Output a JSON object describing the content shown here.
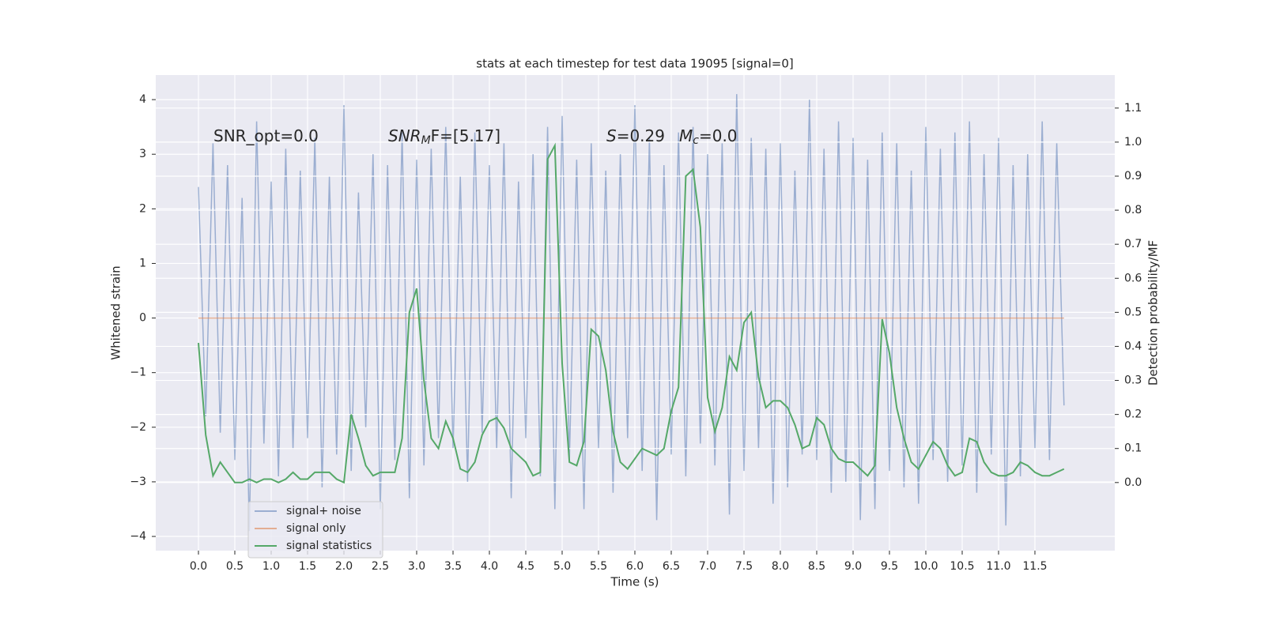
{
  "chart_data": {
    "type": "line",
    "title": "stats at each timestep for test data 19095 [signal=0]",
    "x_label": "Time (s)",
    "y_label": "Whitened strain",
    "y2_label": "Detection probability/MF",
    "annotations": [
      [
        {
          "text": "SNR_opt=0.0"
        }
      ],
      [
        {
          "text": "SNR",
          "style": "italic"
        },
        {
          "text": "M",
          "style": "sub"
        },
        {
          "text": "F=[5.17]"
        }
      ],
      [
        {
          "text": "S",
          "style": "italic"
        },
        {
          "text": "=0.29"
        }
      ],
      [
        {
          "text": "M",
          "style": "italic"
        },
        {
          "text": "c",
          "style": "sub"
        },
        {
          "text": "=0.0"
        }
      ]
    ],
    "grid": true,
    "legend": "lower left",
    "background": "#eaeaf2",
    "xlim": [
      -0.587,
      12.598
    ],
    "ylim": [
      -4.26,
      4.45
    ],
    "y2lim": [
      -0.2,
      1.197
    ],
    "xticks": [
      {
        "value": 0,
        "label": "0.0"
      },
      {
        "value": 0.5,
        "label": "0.5"
      },
      {
        "value": 1,
        "label": "1.0"
      },
      {
        "value": 1.5,
        "label": "1.5"
      },
      {
        "value": 2,
        "label": "2.0"
      },
      {
        "value": 2.5,
        "label": "2.5"
      },
      {
        "value": 3,
        "label": "3.0"
      },
      {
        "value": 3.5,
        "label": "3.5"
      },
      {
        "value": 4,
        "label": "4.0"
      },
      {
        "value": 4.5,
        "label": "4.5"
      },
      {
        "value": 5,
        "label": "5.0"
      },
      {
        "value": 5.5,
        "label": "5.5"
      },
      {
        "value": 6,
        "label": "6.0"
      },
      {
        "value": 6.5,
        "label": "6.5"
      },
      {
        "value": 7,
        "label": "7.0"
      },
      {
        "value": 7.5,
        "label": "7.5"
      },
      {
        "value": 8,
        "label": "8.0"
      },
      {
        "value": 8.5,
        "label": "8.5"
      },
      {
        "value": 9,
        "label": "9.0"
      },
      {
        "value": 9.5,
        "label": "9.5"
      },
      {
        "value": 10,
        "label": "10.0"
      },
      {
        "value": 10.5,
        "label": "10.5"
      },
      {
        "value": 11,
        "label": "11.0"
      },
      {
        "value": 11.5,
        "label": "11.5"
      }
    ],
    "yticks": [
      {
        "value": -4,
        "label": "−4"
      },
      {
        "value": -3,
        "label": "−3"
      },
      {
        "value": -2,
        "label": "−2"
      },
      {
        "value": -1,
        "label": "−1"
      },
      0,
      1,
      2,
      3,
      4
    ],
    "y2ticks": [
      {
        "value": 0,
        "label": "0.0"
      },
      0.1,
      0.2,
      0.3,
      0.4,
      0.5,
      0.6,
      0.7,
      0.8,
      0.9,
      {
        "value": 1,
        "label": "1.0"
      },
      1.1
    ],
    "x": [
      0,
      0.1,
      0.2,
      0.3,
      0.4,
      0.5,
      0.6,
      0.7,
      0.8,
      0.9,
      1,
      1.1,
      1.2,
      1.3,
      1.4,
      1.5,
      1.6,
      1.7,
      1.8,
      1.9,
      2,
      2.1,
      2.2,
      2.3,
      2.4,
      2.5,
      2.6,
      2.7,
      2.8,
      2.9,
      3,
      3.1,
      3.2,
      3.3,
      3.4,
      3.5,
      3.6,
      3.7,
      3.8,
      3.9,
      4,
      4.1,
      4.2,
      4.3,
      4.4,
      4.5,
      4.6,
      4.7,
      4.8,
      4.9,
      5,
      5.1,
      5.2,
      5.3,
      5.4,
      5.5,
      5.6,
      5.7,
      5.8,
      5.9,
      6,
      6.1,
      6.2,
      6.3,
      6.4,
      6.5,
      6.6,
      6.7,
      6.8,
      6.9,
      7,
      7.1,
      7.2,
      7.3,
      7.4,
      7.5,
      7.6,
      7.7,
      7.8,
      7.9,
      8,
      8.1,
      8.2,
      8.3,
      8.4,
      8.5,
      8.6,
      8.7,
      8.8,
      8.9,
      9,
      9.1,
      9.2,
      9.3,
      9.4,
      9.5,
      9.6,
      9.7,
      9.8,
      9.9,
      10,
      10.1,
      10.2,
      10.3,
      10.4,
      10.5,
      10.6,
      10.7,
      10.8,
      10.9,
      11,
      11.1,
      11.2,
      11.3,
      11.4,
      11.5,
      11.6,
      11.7,
      11.8,
      11.9
    ],
    "series": [
      {
        "name": "signal+ noise",
        "color": "#4c72b0",
        "opacity": 0.5,
        "values": [
          2.4,
          -1.8,
          3.2,
          -2.1,
          2.8,
          -2.6,
          2.2,
          -3.9,
          3.6,
          -2.3,
          2.5,
          -2.9,
          3.1,
          -2.4,
          2.7,
          -2.2,
          3.3,
          -3.1,
          2.6,
          -2.5,
          3.9,
          -2.8,
          2.3,
          -2.0,
          3.0,
          -3.5,
          2.8,
          -2.6,
          3.4,
          -3.3,
          2.9,
          -2.7,
          3.1,
          -2.2,
          3.5,
          -2.4,
          2.6,
          -3.0,
          3.4,
          -2.1,
          2.8,
          -2.4,
          3.2,
          -3.3,
          2.5,
          -2.2,
          3.0,
          -2.9,
          3.5,
          -3.5,
          3.7,
          -2.6,
          2.9,
          -3.5,
          3.2,
          -2.4,
          2.7,
          -3.2,
          3.0,
          -2.2,
          3.9,
          -2.8,
          3.3,
          -3.7,
          2.8,
          -2.5,
          3.4,
          -2.9,
          3.5,
          -2.3,
          3.0,
          -2.7,
          3.2,
          -3.6,
          4.1,
          -2.8,
          3.3,
          -2.4,
          3.1,
          -3.4,
          3.2,
          -3.1,
          2.7,
          -2.5,
          4.0,
          -2.6,
          3.1,
          -3.2,
          3.6,
          -3.0,
          3.3,
          -3.7,
          2.9,
          -3.5,
          3.4,
          -2.8,
          3.2,
          -3.1,
          2.7,
          -3.4,
          3.5,
          -2.6,
          3.1,
          -3.0,
          3.4,
          -2.7,
          3.6,
          -3.2,
          3.0,
          -2.5,
          3.3,
          -3.8,
          2.8,
          -2.9,
          3.0,
          -2.4,
          3.6,
          -2.6,
          3.2,
          -1.6
        ]
      },
      {
        "name": "signal only",
        "color": "#dd8452",
        "opacity": 0.6,
        "values": [
          0,
          0,
          0,
          0,
          0,
          0,
          0,
          0,
          0,
          0,
          0,
          0,
          0,
          0,
          0,
          0,
          0,
          0,
          0,
          0,
          0,
          0,
          0,
          0,
          0,
          0,
          0,
          0,
          0,
          0,
          0,
          0,
          0,
          0,
          0,
          0,
          0,
          0,
          0,
          0,
          0,
          0,
          0,
          0,
          0,
          0,
          0,
          0,
          0,
          0,
          0,
          0,
          0,
          0,
          0,
          0,
          0,
          0,
          0,
          0,
          0,
          0,
          0,
          0,
          0,
          0,
          0,
          0,
          0,
          0,
          0,
          0,
          0,
          0,
          0,
          0,
          0,
          0,
          0,
          0,
          0,
          0,
          0,
          0,
          0,
          0,
          0,
          0,
          0,
          0,
          0,
          0,
          0,
          0,
          0,
          0,
          0,
          0,
          0,
          0,
          0,
          0,
          0,
          0,
          0,
          0,
          0,
          0,
          0,
          0,
          0,
          0,
          0,
          0,
          0,
          0,
          0,
          0,
          0,
          0
        ]
      },
      {
        "name": "signal statistics",
        "color": "#55a868",
        "opacity": 1,
        "axis": "y2",
        "values": [
          0.41,
          0.14,
          0.02,
          0.06,
          0.03,
          0.0,
          0.0,
          0.01,
          0.0,
          0.01,
          0.01,
          0.0,
          0.01,
          0.03,
          0.01,
          0.01,
          0.03,
          0.03,
          0.03,
          0.01,
          0.0,
          0.2,
          0.13,
          0.05,
          0.02,
          0.03,
          0.03,
          0.03,
          0.13,
          0.5,
          0.57,
          0.3,
          0.13,
          0.1,
          0.18,
          0.13,
          0.04,
          0.03,
          0.06,
          0.14,
          0.18,
          0.19,
          0.16,
          0.1,
          0.08,
          0.06,
          0.02,
          0.03,
          0.95,
          0.99,
          0.35,
          0.06,
          0.05,
          0.12,
          0.45,
          0.43,
          0.33,
          0.15,
          0.06,
          0.04,
          0.07,
          0.1,
          0.09,
          0.08,
          0.1,
          0.21,
          0.28,
          0.9,
          0.92,
          0.75,
          0.25,
          0.15,
          0.22,
          0.37,
          0.33,
          0.47,
          0.5,
          0.31,
          0.22,
          0.24,
          0.24,
          0.22,
          0.17,
          0.1,
          0.11,
          0.19,
          0.17,
          0.1,
          0.07,
          0.06,
          0.06,
          0.04,
          0.02,
          0.05,
          0.48,
          0.38,
          0.22,
          0.13,
          0.06,
          0.04,
          0.08,
          0.12,
          0.1,
          0.05,
          0.02,
          0.03,
          0.13,
          0.12,
          0.06,
          0.03,
          0.02,
          0.02,
          0.03,
          0.06,
          0.05,
          0.03,
          0.02,
          0.02,
          0.03,
          0.04
        ]
      }
    ]
  }
}
